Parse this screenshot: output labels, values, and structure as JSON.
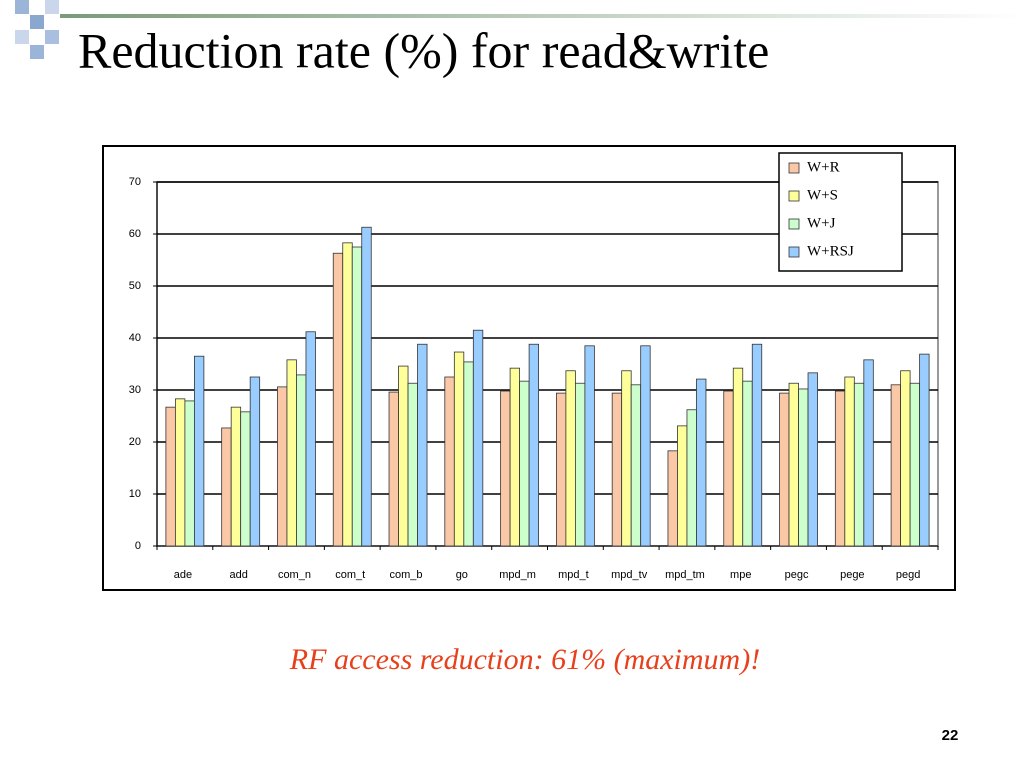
{
  "slide": {
    "title": "Reduction rate (%) for read&write",
    "note": "RF access reduction: 61% (maximum)!",
    "page_number": "22"
  },
  "chart_data": {
    "type": "bar",
    "categories": [
      "ade",
      "add",
      "com_n",
      "com_t",
      "com_b",
      "go",
      "mpd_m",
      "mpd_t",
      "mpd_tv",
      "mpd_tm",
      "mpe",
      "pegc",
      "pege",
      "pegd"
    ],
    "series": [
      {
        "name": "W+R",
        "color": "#fac8a6",
        "values": [
          26.7,
          22.7,
          30.6,
          56.3,
          29.6,
          32.5,
          29.8,
          29.4,
          29.4,
          18.3,
          29.8,
          29.4,
          29.8,
          31.0
        ]
      },
      {
        "name": "W+S",
        "color": "#ffff99",
        "values": [
          28.3,
          26.7,
          35.8,
          58.3,
          34.6,
          37.3,
          34.2,
          33.7,
          33.7,
          23.1,
          34.2,
          31.3,
          32.5,
          33.7
        ]
      },
      {
        "name": "W+J",
        "color": "#ccffcc",
        "values": [
          27.9,
          25.8,
          32.9,
          57.5,
          31.3,
          35.4,
          31.7,
          31.3,
          31.0,
          26.2,
          31.7,
          30.2,
          31.3,
          31.3
        ]
      },
      {
        "name": "W+RSJ",
        "color": "#99ccff",
        "values": [
          36.5,
          32.5,
          41.2,
          61.3,
          38.8,
          41.5,
          38.8,
          38.5,
          38.5,
          32.1,
          38.8,
          33.3,
          35.8,
          36.9
        ]
      }
    ],
    "ylim": [
      0,
      70
    ],
    "yticks": [
      0,
      10,
      20,
      30,
      40,
      50,
      60,
      70
    ],
    "grid": true,
    "legend": "top-right"
  }
}
